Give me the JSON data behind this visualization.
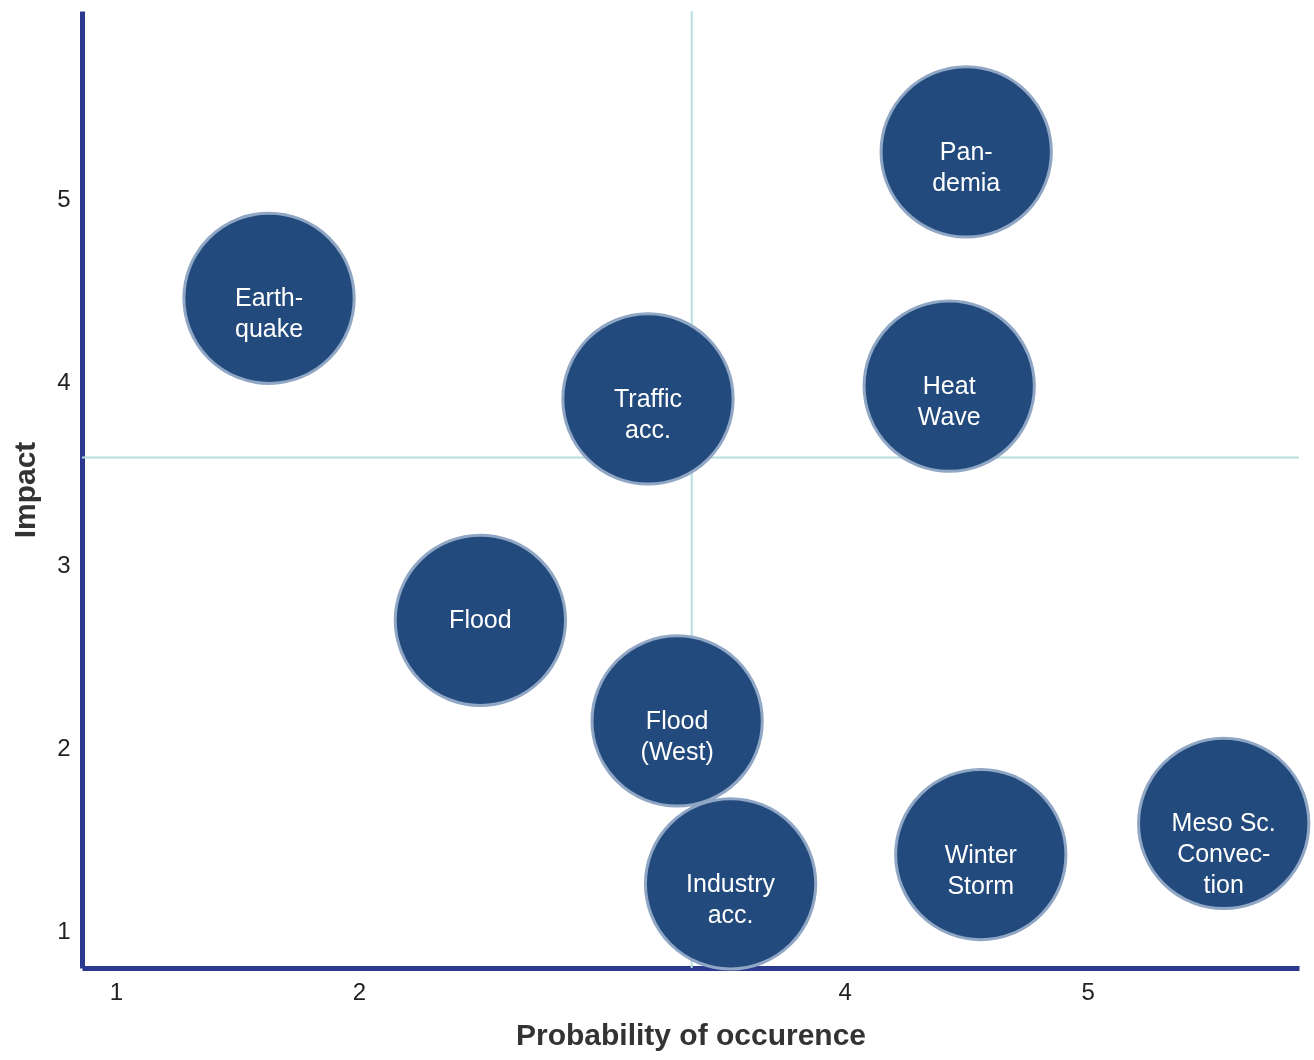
{
  "chart_data": {
    "type": "scatter",
    "xlabel": "Probability of occurence",
    "ylabel": "Impact",
    "x": [
      4.5,
      1.63,
      3.19,
      4.43,
      2.5,
      3.31,
      3.53,
      4.56,
      5.56
    ],
    "series": [
      {
        "color": "#234a7c",
        "values": [
          5.26,
          4.46,
          3.91,
          3.98,
          2.7,
          2.15,
          1.26,
          1.42,
          1.59
        ]
      }
    ],
    "marker": "circle",
    "xlim": [
      0.86,
      5.87
    ],
    "ylim": [
      0.8,
      6.03
    ],
    "xticks": [
      1,
      2,
      4,
      5
    ],
    "yticks": [
      1,
      2,
      3,
      4,
      5
    ],
    "grid": false,
    "ref_lines": [
      {
        "axis": "x",
        "value": 3.37,
        "color": "#b7dde0"
      },
      {
        "axis": "y",
        "value": 3.59,
        "color": "#b7dde0"
      }
    ],
    "annotations": [
      {
        "text": "Pan-\ndemia",
        "x": 4.5,
        "y": 5.26
      },
      {
        "text": "Earth-\nquake",
        "x": 1.63,
        "y": 4.46
      },
      {
        "text": "Traffic\nacc.",
        "x": 3.19,
        "y": 3.91
      },
      {
        "text": "Heat\nWave",
        "x": 4.43,
        "y": 3.98
      },
      {
        "text": "Flood",
        "x": 2.5,
        "y": 2.7
      },
      {
        "text": "Flood\n(West)",
        "x": 3.31,
        "y": 2.15
      },
      {
        "text": "Industry\nacc.",
        "x": 3.53,
        "y": 1.26
      },
      {
        "text": "Winter\nStorm",
        "x": 4.56,
        "y": 1.42
      },
      {
        "text": "Meso Sc.\nConvec-\ntion",
        "x": 5.56,
        "y": 1.59
      }
    ]
  }
}
